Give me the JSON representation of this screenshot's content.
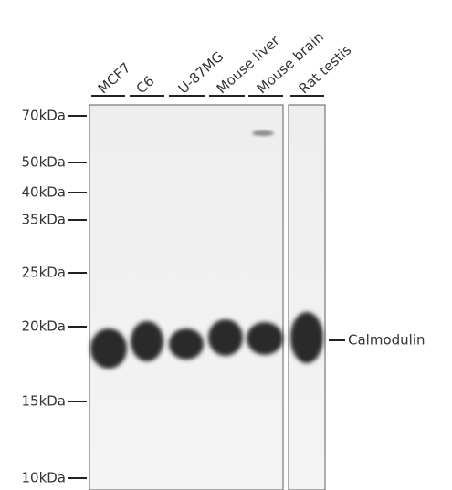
{
  "lanes": [
    "MCF7",
    "C6",
    "U-87MG",
    "Mouse liver",
    "Mouse brain",
    "Rat testis"
  ],
  "markers": [
    "70kDa",
    "50kDa",
    "40kDa",
    "35kDa",
    "25kDa",
    "20kDa",
    "15kDa",
    "10kDa"
  ],
  "band_label": "Calmodulin"
}
